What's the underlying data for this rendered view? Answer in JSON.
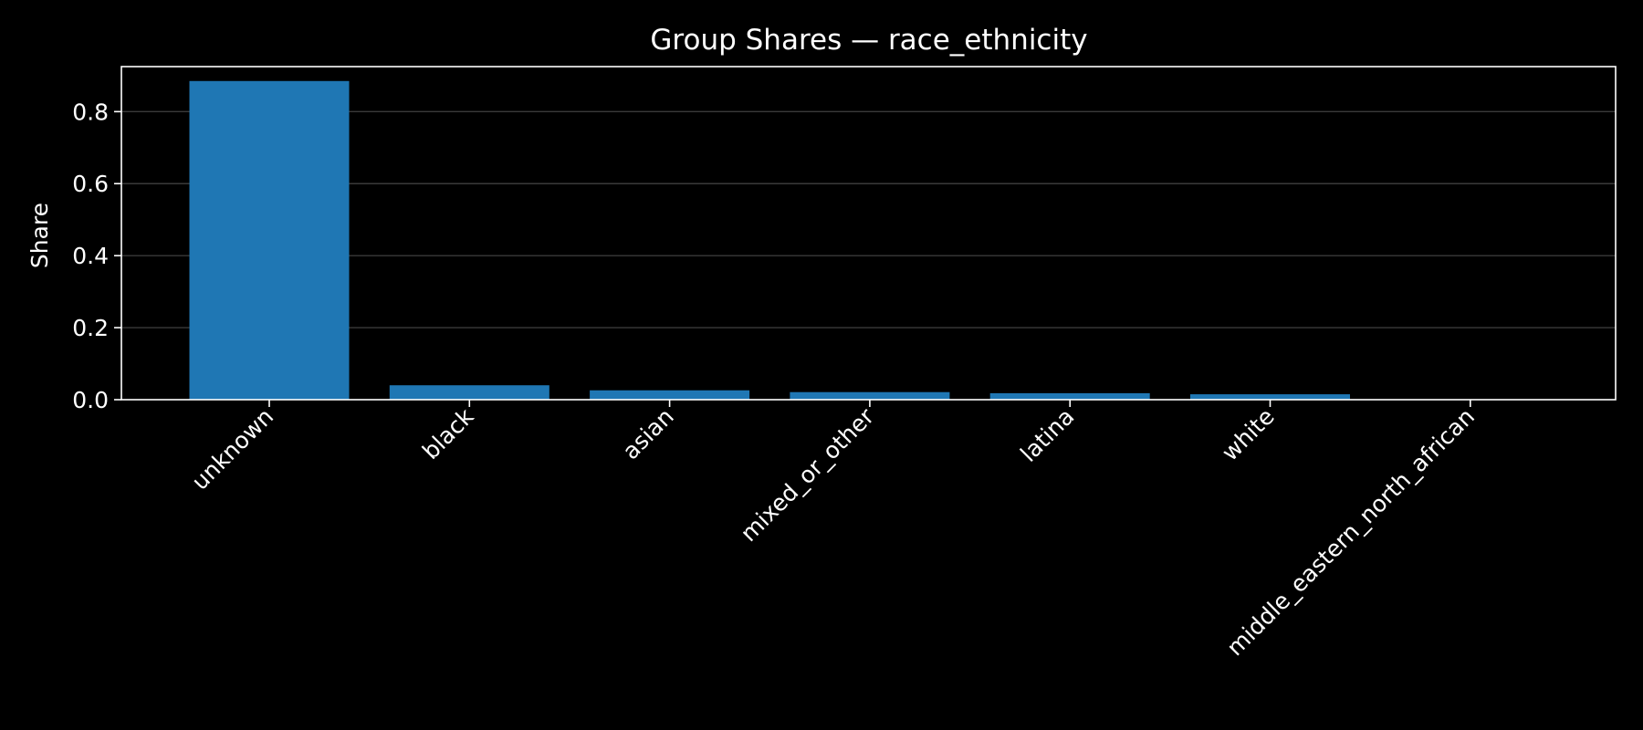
{
  "chart_data": {
    "type": "bar",
    "title": "Group Shares — race_ethnicity",
    "xlabel": "",
    "ylabel": "Share",
    "categories": [
      "unknown",
      "black",
      "asian",
      "mixed_or_other",
      "latina",
      "white",
      "middle_eastern_north_african"
    ],
    "values": [
      0.885,
      0.04,
      0.026,
      0.021,
      0.018,
      0.015,
      0.0
    ],
    "ylim": [
      0,
      0.925
    ],
    "yticks": [
      0.0,
      0.2,
      0.4,
      0.6,
      0.8
    ],
    "ytick_labels": [
      "0.0",
      "0.2",
      "0.4",
      "0.6",
      "0.8"
    ],
    "grid": "y-major",
    "legend": "none",
    "colors": {
      "background": "#000000",
      "bar": "#1f77b4",
      "grid": "#3a3a3a",
      "axes": "#ffffff",
      "text": "#ffffff"
    }
  }
}
